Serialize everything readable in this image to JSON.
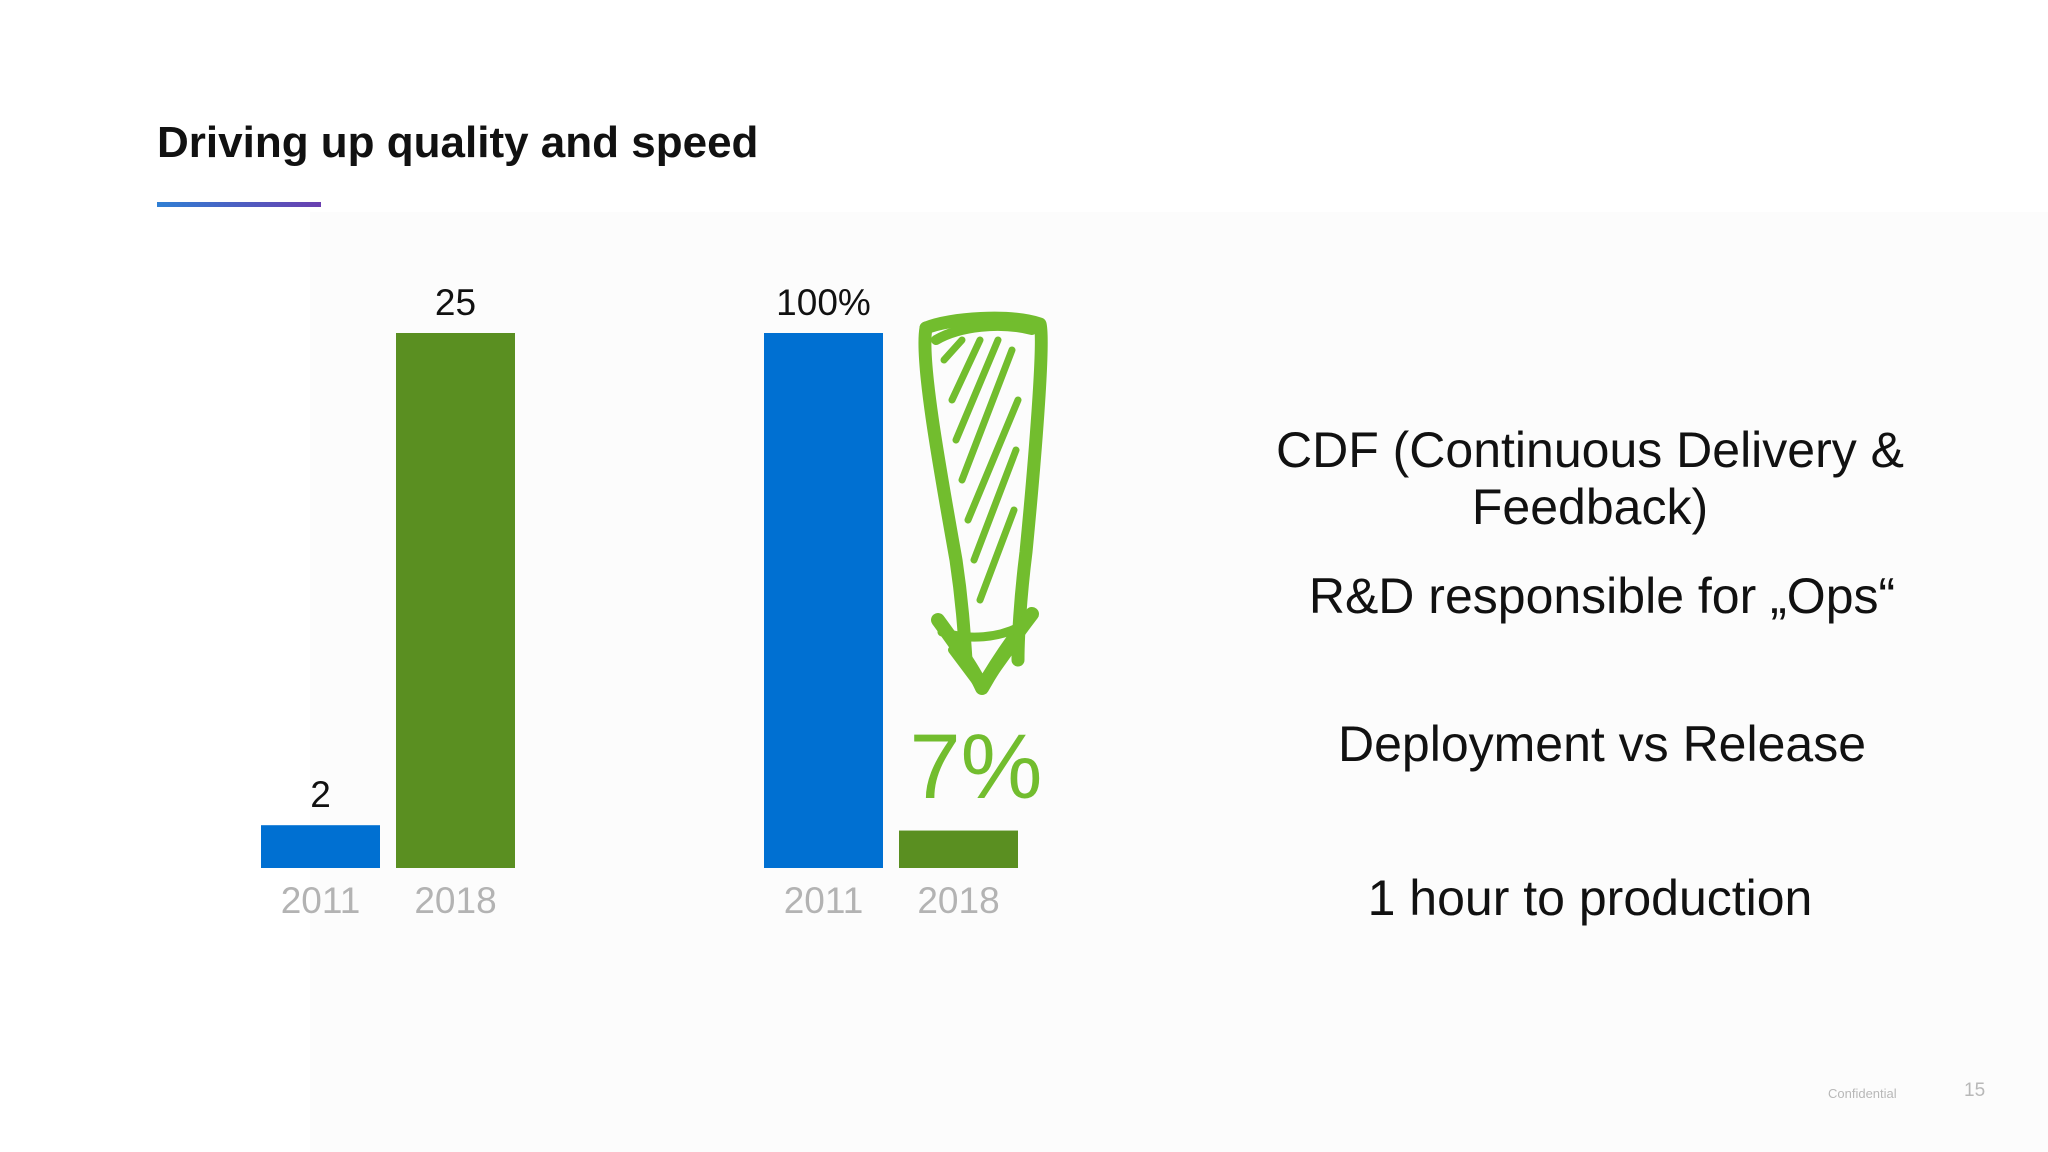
{
  "slide": {
    "title": "Driving up quality and speed",
    "confidential": "Confidential",
    "page_number": "15"
  },
  "colors": {
    "blue": "#0070d2",
    "green": "#5a8f21",
    "annotation_green": "#72bd2e",
    "tick_gray": "#b3b3b3",
    "text": "#111111"
  },
  "annotation": {
    "label": "7%",
    "icon": "hand-drawn-down-arrow-icon"
  },
  "chart_data": [
    {
      "type": "bar",
      "categories": [
        "2011",
        "2018"
      ],
      "values": [
        2,
        25
      ],
      "data_labels": [
        "2",
        "25"
      ],
      "bar_colors": [
        "#0070d2",
        "#5a8f21"
      ],
      "ylim": [
        0,
        25
      ],
      "grid": false,
      "legend": "none"
    },
    {
      "type": "bar",
      "categories": [
        "2011",
        "2018"
      ],
      "values": [
        100,
        7
      ],
      "data_labels": [
        "100%",
        ""
      ],
      "bar_colors": [
        "#0070d2",
        "#5a8f21"
      ],
      "ylim": [
        0,
        100
      ],
      "grid": false,
      "legend": "none"
    }
  ],
  "bullets": [
    {
      "line1": "CDF (Continuous Delivery &",
      "line2": "Feedback)"
    },
    {
      "line1": "R&D responsible for „Ops“"
    },
    {
      "line1": "Deployment vs Release"
    },
    {
      "line1": "1 hour to production"
    }
  ]
}
